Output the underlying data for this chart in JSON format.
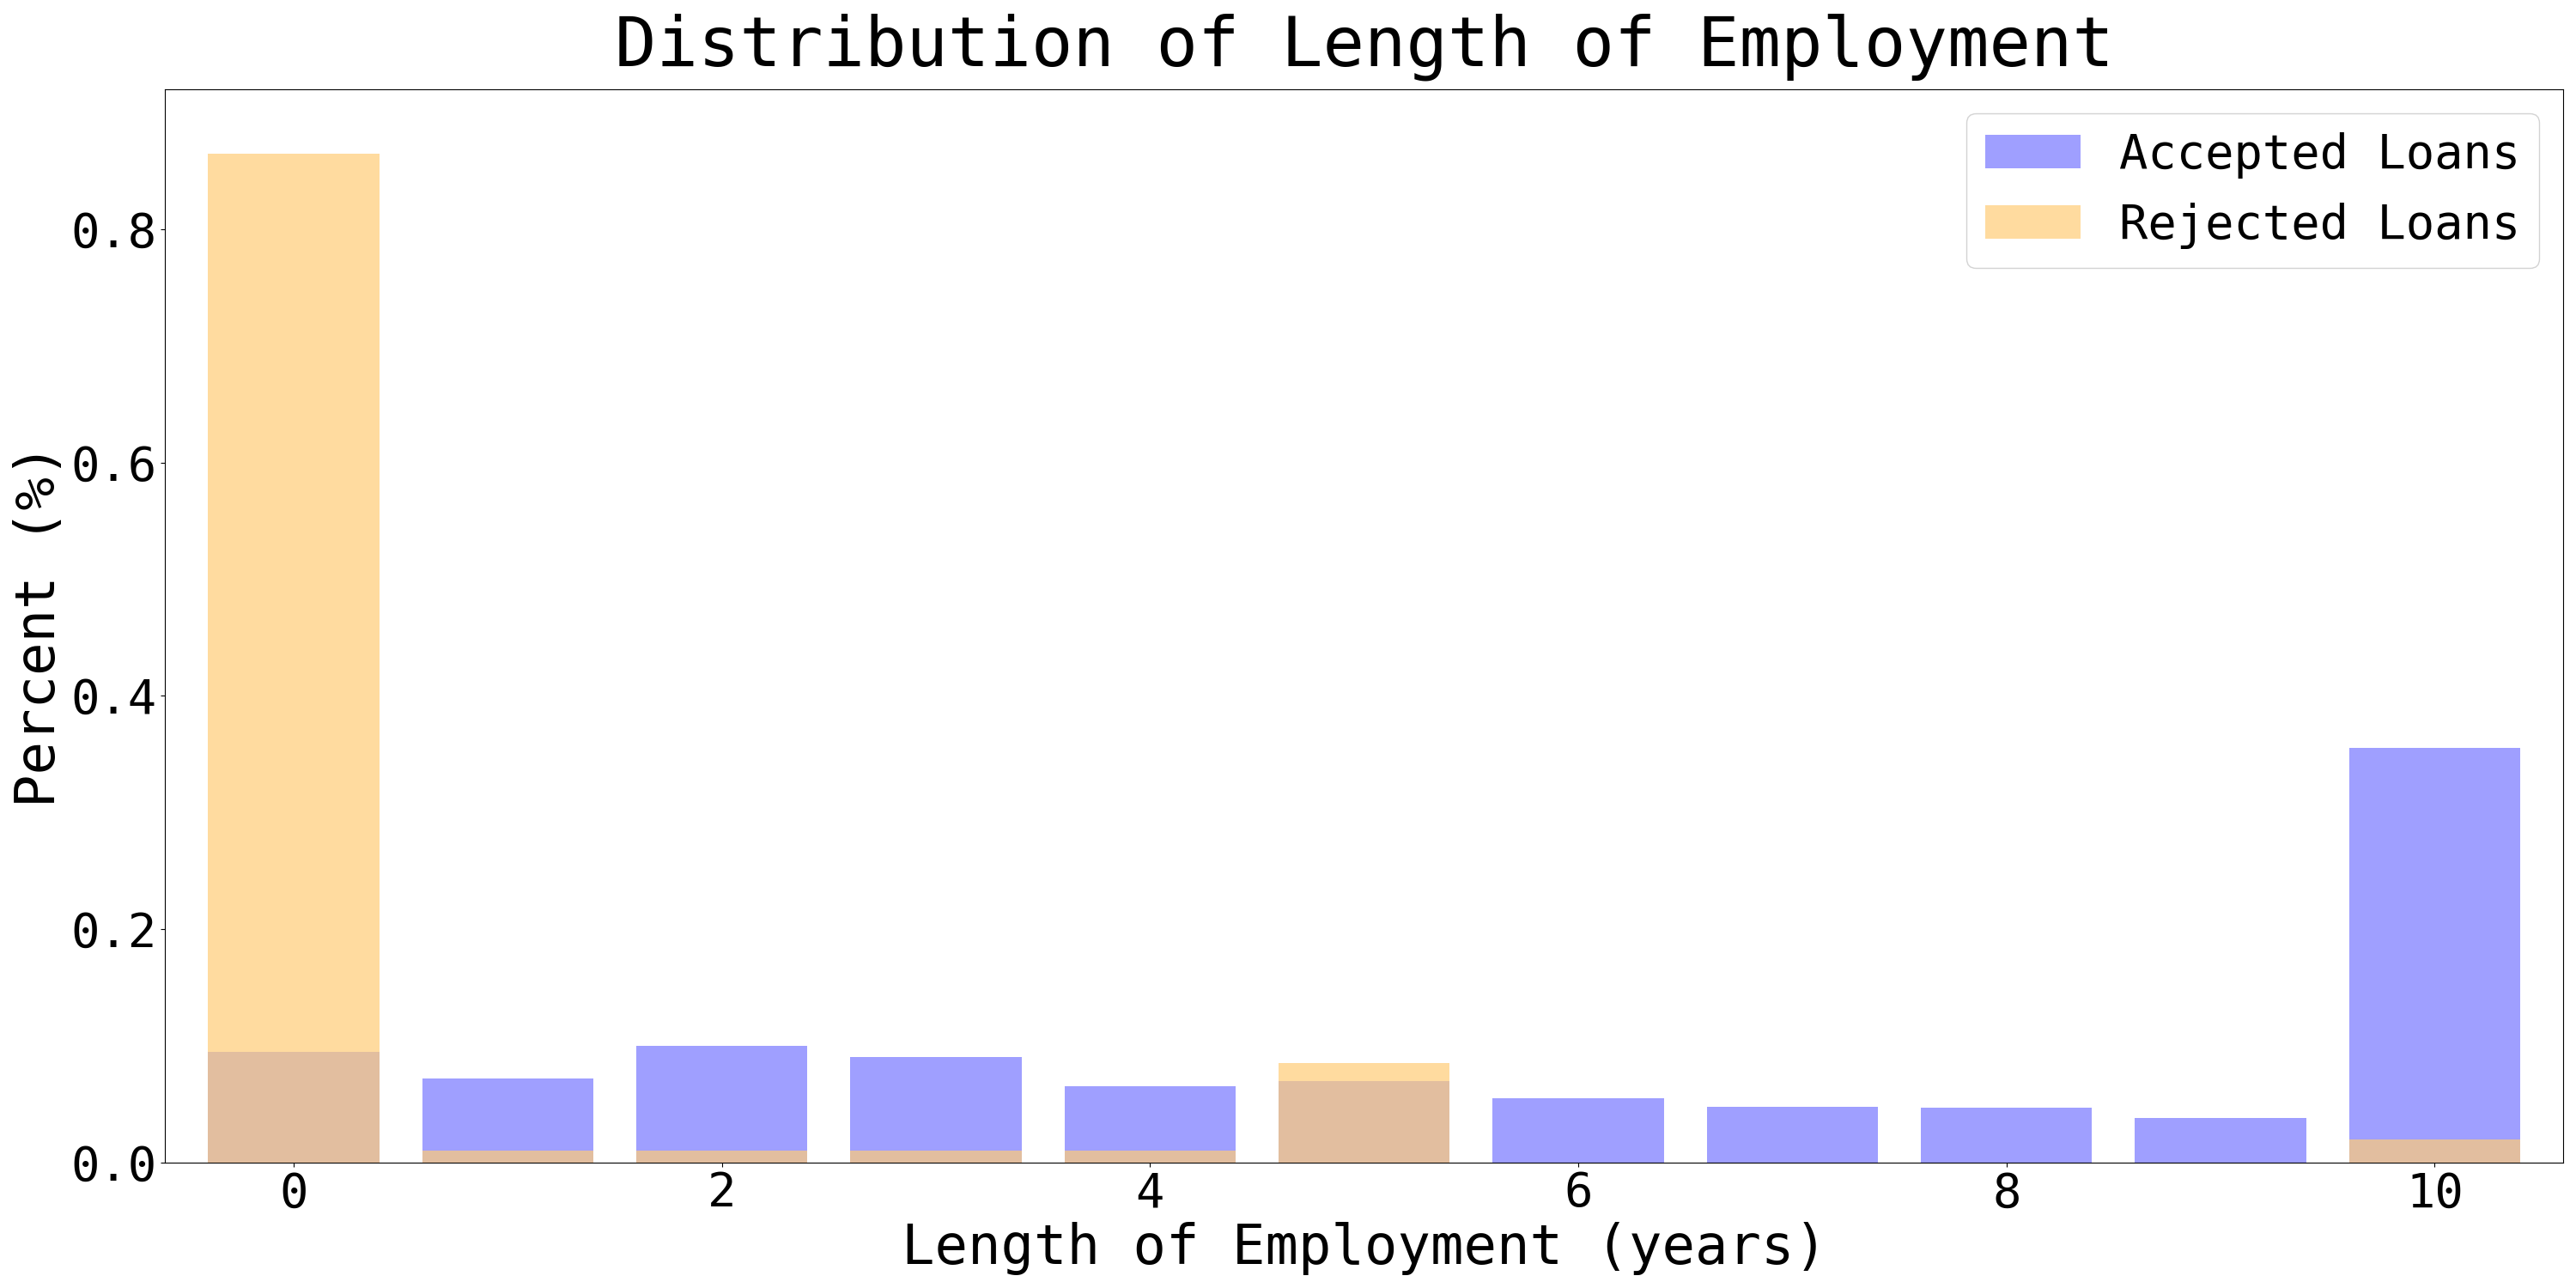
{
  "title": "Distribution of Length of Employment",
  "xlabel": "Length of Employment (years)",
  "ylabel": "Percent (%)",
  "categories": [
    0,
    1,
    2,
    3,
    4,
    5,
    6,
    7,
    8,
    9,
    10
  ],
  "accepted_values": [
    0.095,
    0.072,
    0.1,
    0.09,
    0.065,
    0.07,
    0.055,
    0.048,
    0.047,
    0.038,
    0.355
  ],
  "rejected_values": [
    0.865,
    0.01,
    0.01,
    0.01,
    0.01,
    0.085,
    0.0,
    0.0,
    0.0,
    0.0,
    0.02
  ],
  "accepted_color": "#7777ff",
  "rejected_color": "#ffcc77",
  "accepted_alpha": 0.7,
  "rejected_alpha": 0.7,
  "accepted_label": "Accepted Loans",
  "rejected_label": "Rejected Loans",
  "ylim": [
    0,
    0.92
  ],
  "yticks": [
    0.0,
    0.2,
    0.4,
    0.6,
    0.8
  ],
  "xticks": [
    0,
    2,
    4,
    6,
    8,
    10
  ],
  "bar_width": 0.8,
  "title_fontsize": 58,
  "label_fontsize": 46,
  "tick_fontsize": 40,
  "legend_fontsize": 40
}
